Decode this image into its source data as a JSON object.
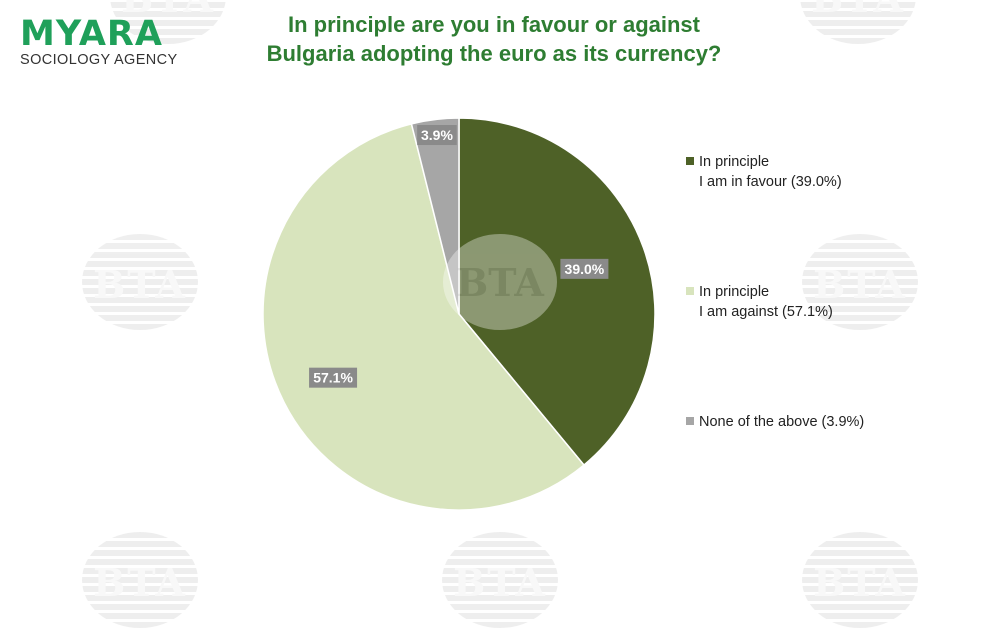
{
  "logo": {
    "name": "MYARA",
    "subtitle": "SOCIOLOGY AGENCY"
  },
  "watermark_text": "BTA",
  "chart_data": {
    "type": "pie",
    "title_lines": [
      "In principle are you in favour or against",
      "Bulgaria adopting the euro as its currency?"
    ],
    "slices": [
      {
        "label_lines": [
          "In principle",
          "I am in favour (39.0%)"
        ],
        "value": 39.0,
        "data_label": "39.0%",
        "color": "#4e6127"
      },
      {
        "label_lines": [
          "In principle",
          "I am against (57.1%)"
        ],
        "value": 57.1,
        "data_label": "57.1%",
        "color": "#d8e4bd"
      },
      {
        "label_lines": [
          "None of the above (3.9%)"
        ],
        "value": 3.9,
        "data_label": "3.9%",
        "color": "#a6a6a6"
      }
    ],
    "start_angle": "12 o'clock",
    "direction": "clockwise",
    "legend_position": "right"
  },
  "colors": {
    "title": "#2e7d32",
    "logo": "#1fa05a",
    "data_label_bg": "#8a8a8a"
  }
}
